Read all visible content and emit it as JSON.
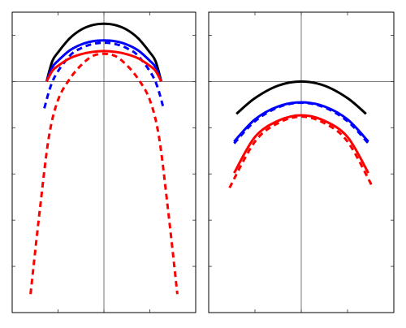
{
  "chart_data": [
    {
      "type": "line",
      "title": "",
      "xlabel": "",
      "ylabel": "",
      "xlim": [
        -2,
        2
      ],
      "ylim": [
        -5,
        1.5
      ],
      "xticks": [
        -1,
        0,
        1
      ],
      "yticks": [
        -4,
        -3,
        -2,
        -1,
        0,
        1
      ],
      "tick_labels_shown": false,
      "grid": false,
      "axes_lines": {
        "x": 0,
        "y": 0
      },
      "series": [
        {
          "color": "#000000",
          "dash": "solid",
          "x": [
            -1.25,
            -1.125,
            -1,
            -0.75,
            -0.5,
            -0.25,
            0,
            0.25,
            0.5,
            0.75,
            1,
            1.125,
            1.25
          ],
          "y": [
            0,
            0.44,
            0.63,
            0.93,
            1.12,
            1.22,
            1.25,
            1.22,
            1.12,
            0.93,
            0.63,
            0.44,
            0
          ]
        },
        {
          "color": "#0000ff",
          "dash": "solid",
          "x": [
            -1.25,
            -1.125,
            -1,
            -0.75,
            -0.5,
            -0.25,
            0,
            0.25,
            0.5,
            0.75,
            1,
            1.125,
            1.25
          ],
          "y": [
            0,
            0.31,
            0.45,
            0.67,
            0.8,
            0.87,
            0.89,
            0.87,
            0.8,
            0.67,
            0.45,
            0.31,
            0
          ]
        },
        {
          "color": "#0000ff",
          "dash": "dashed",
          "x": [
            -1.3,
            -1.1,
            -0.75,
            -0.5,
            -0.25,
            0,
            0.25,
            0.5,
            0.75,
            1.1,
            1.3
          ],
          "y": [
            -0.58,
            0.05,
            0.55,
            0.72,
            0.81,
            0.84,
            0.81,
            0.72,
            0.55,
            0.05,
            -0.58
          ]
        },
        {
          "color": "#ff0000",
          "dash": "solid",
          "x": [
            -1.25,
            -1.125,
            -1,
            -0.75,
            -0.5,
            -0.25,
            0,
            0.25,
            0.5,
            0.75,
            1,
            1.125,
            1.25
          ],
          "y": [
            0,
            0.23,
            0.34,
            0.5,
            0.59,
            0.64,
            0.66,
            0.64,
            0.59,
            0.5,
            0.34,
            0.23,
            0
          ]
        },
        {
          "color": "#ff0000",
          "dash": "dashed",
          "x": [
            -1.6,
            -1.4,
            -1.2,
            -1,
            -0.75,
            -0.5,
            -0.25,
            0,
            0.25,
            0.5,
            0.75,
            1,
            1.2,
            1.4,
            1.6
          ],
          "y": [
            -4.6,
            -2.8,
            -1.2,
            -0.4,
            0.05,
            0.35,
            0.55,
            0.6,
            0.55,
            0.35,
            0.05,
            -0.4,
            -1.2,
            -2.8,
            -4.6
          ]
        }
      ]
    },
    {
      "type": "line",
      "title": "",
      "xlabel": "",
      "ylabel": "",
      "xlim": [
        -2,
        2
      ],
      "ylim": [
        -5,
        1.5
      ],
      "xticks": [
        -1,
        0,
        1
      ],
      "yticks": [
        -4,
        -3,
        -2,
        -1,
        0,
        1
      ],
      "tick_labels_shown": false,
      "grid": false,
      "axes_lines": {
        "x": 0,
        "y": 0
      },
      "series": [
        {
          "color": "#000000",
          "dash": "solid",
          "x": [
            -1.4,
            -1,
            -0.5,
            0,
            0.5,
            1,
            1.4
          ],
          "y": [
            -0.7,
            -0.36,
            -0.09,
            0,
            -0.09,
            -0.36,
            -0.7
          ]
        },
        {
          "color": "#0000ff",
          "dash": "solid",
          "x": [
            -1.45,
            -1,
            -0.5,
            0,
            0.5,
            1,
            1.45
          ],
          "y": [
            -1.3,
            -0.82,
            -0.54,
            -0.45,
            -0.54,
            -0.82,
            -1.3
          ]
        },
        {
          "color": "#0000ff",
          "dash": "dashed",
          "x": [
            -1.45,
            -1,
            -0.5,
            0,
            0.5,
            1,
            1.45
          ],
          "y": [
            -1.34,
            -0.86,
            -0.56,
            -0.46,
            -0.56,
            -0.86,
            -1.34
          ]
        },
        {
          "color": "#ff0000",
          "dash": "solid",
          "x": [
            -1.45,
            -1,
            -0.5,
            0,
            0.5,
            1,
            1.45
          ],
          "y": [
            -1.98,
            -1.2,
            -0.85,
            -0.73,
            -0.85,
            -1.2,
            -1.98
          ]
        },
        {
          "color": "#ff0000",
          "dash": "dashed",
          "x": [
            -1.55,
            -1,
            -0.5,
            0,
            0.5,
            1,
            1.55
          ],
          "y": [
            -2.3,
            -1.3,
            -0.9,
            -0.76,
            -0.9,
            -1.3,
            -2.3
          ]
        }
      ]
    }
  ]
}
